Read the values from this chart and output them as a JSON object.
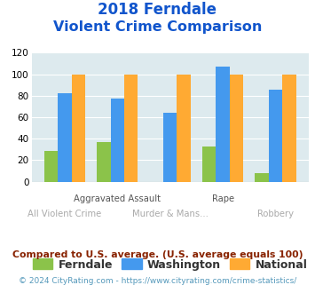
{
  "title_line1": "2018 Ferndale",
  "title_line2": "Violent Crime Comparison",
  "ferndale": [
    29,
    37,
    0,
    33,
    8
  ],
  "washington": [
    82,
    77,
    64,
    107,
    86
  ],
  "national": [
    100,
    100,
    100,
    100,
    100
  ],
  "bar_colors": {
    "ferndale": "#8bc34a",
    "washington": "#4499ee",
    "national": "#ffaa33"
  },
  "ylim": [
    0,
    120
  ],
  "yticks": [
    0,
    20,
    40,
    60,
    80,
    100,
    120
  ],
  "legend_labels": [
    "Ferndale",
    "Washington",
    "National"
  ],
  "footnote1": "Compared to U.S. average. (U.S. average equals 100)",
  "footnote2": "© 2024 CityRating.com - https://www.cityrating.com/crime-statistics/",
  "title_color": "#1155cc",
  "footnote1_color": "#882200",
  "footnote2_color": "#5599bb",
  "plot_bg_color": "#ddeaee",
  "top_xlabels": [
    [
      1,
      "Aggravated Assault"
    ],
    [
      3,
      "Rape"
    ]
  ],
  "bottom_xlabels": [
    [
      0,
      "All Violent Crime"
    ],
    [
      2,
      "Murder & Mans..."
    ],
    [
      4,
      "Robbery"
    ]
  ],
  "top_xlabel_color": "#555555",
  "bottom_xlabel_color": "#aaaaaa"
}
